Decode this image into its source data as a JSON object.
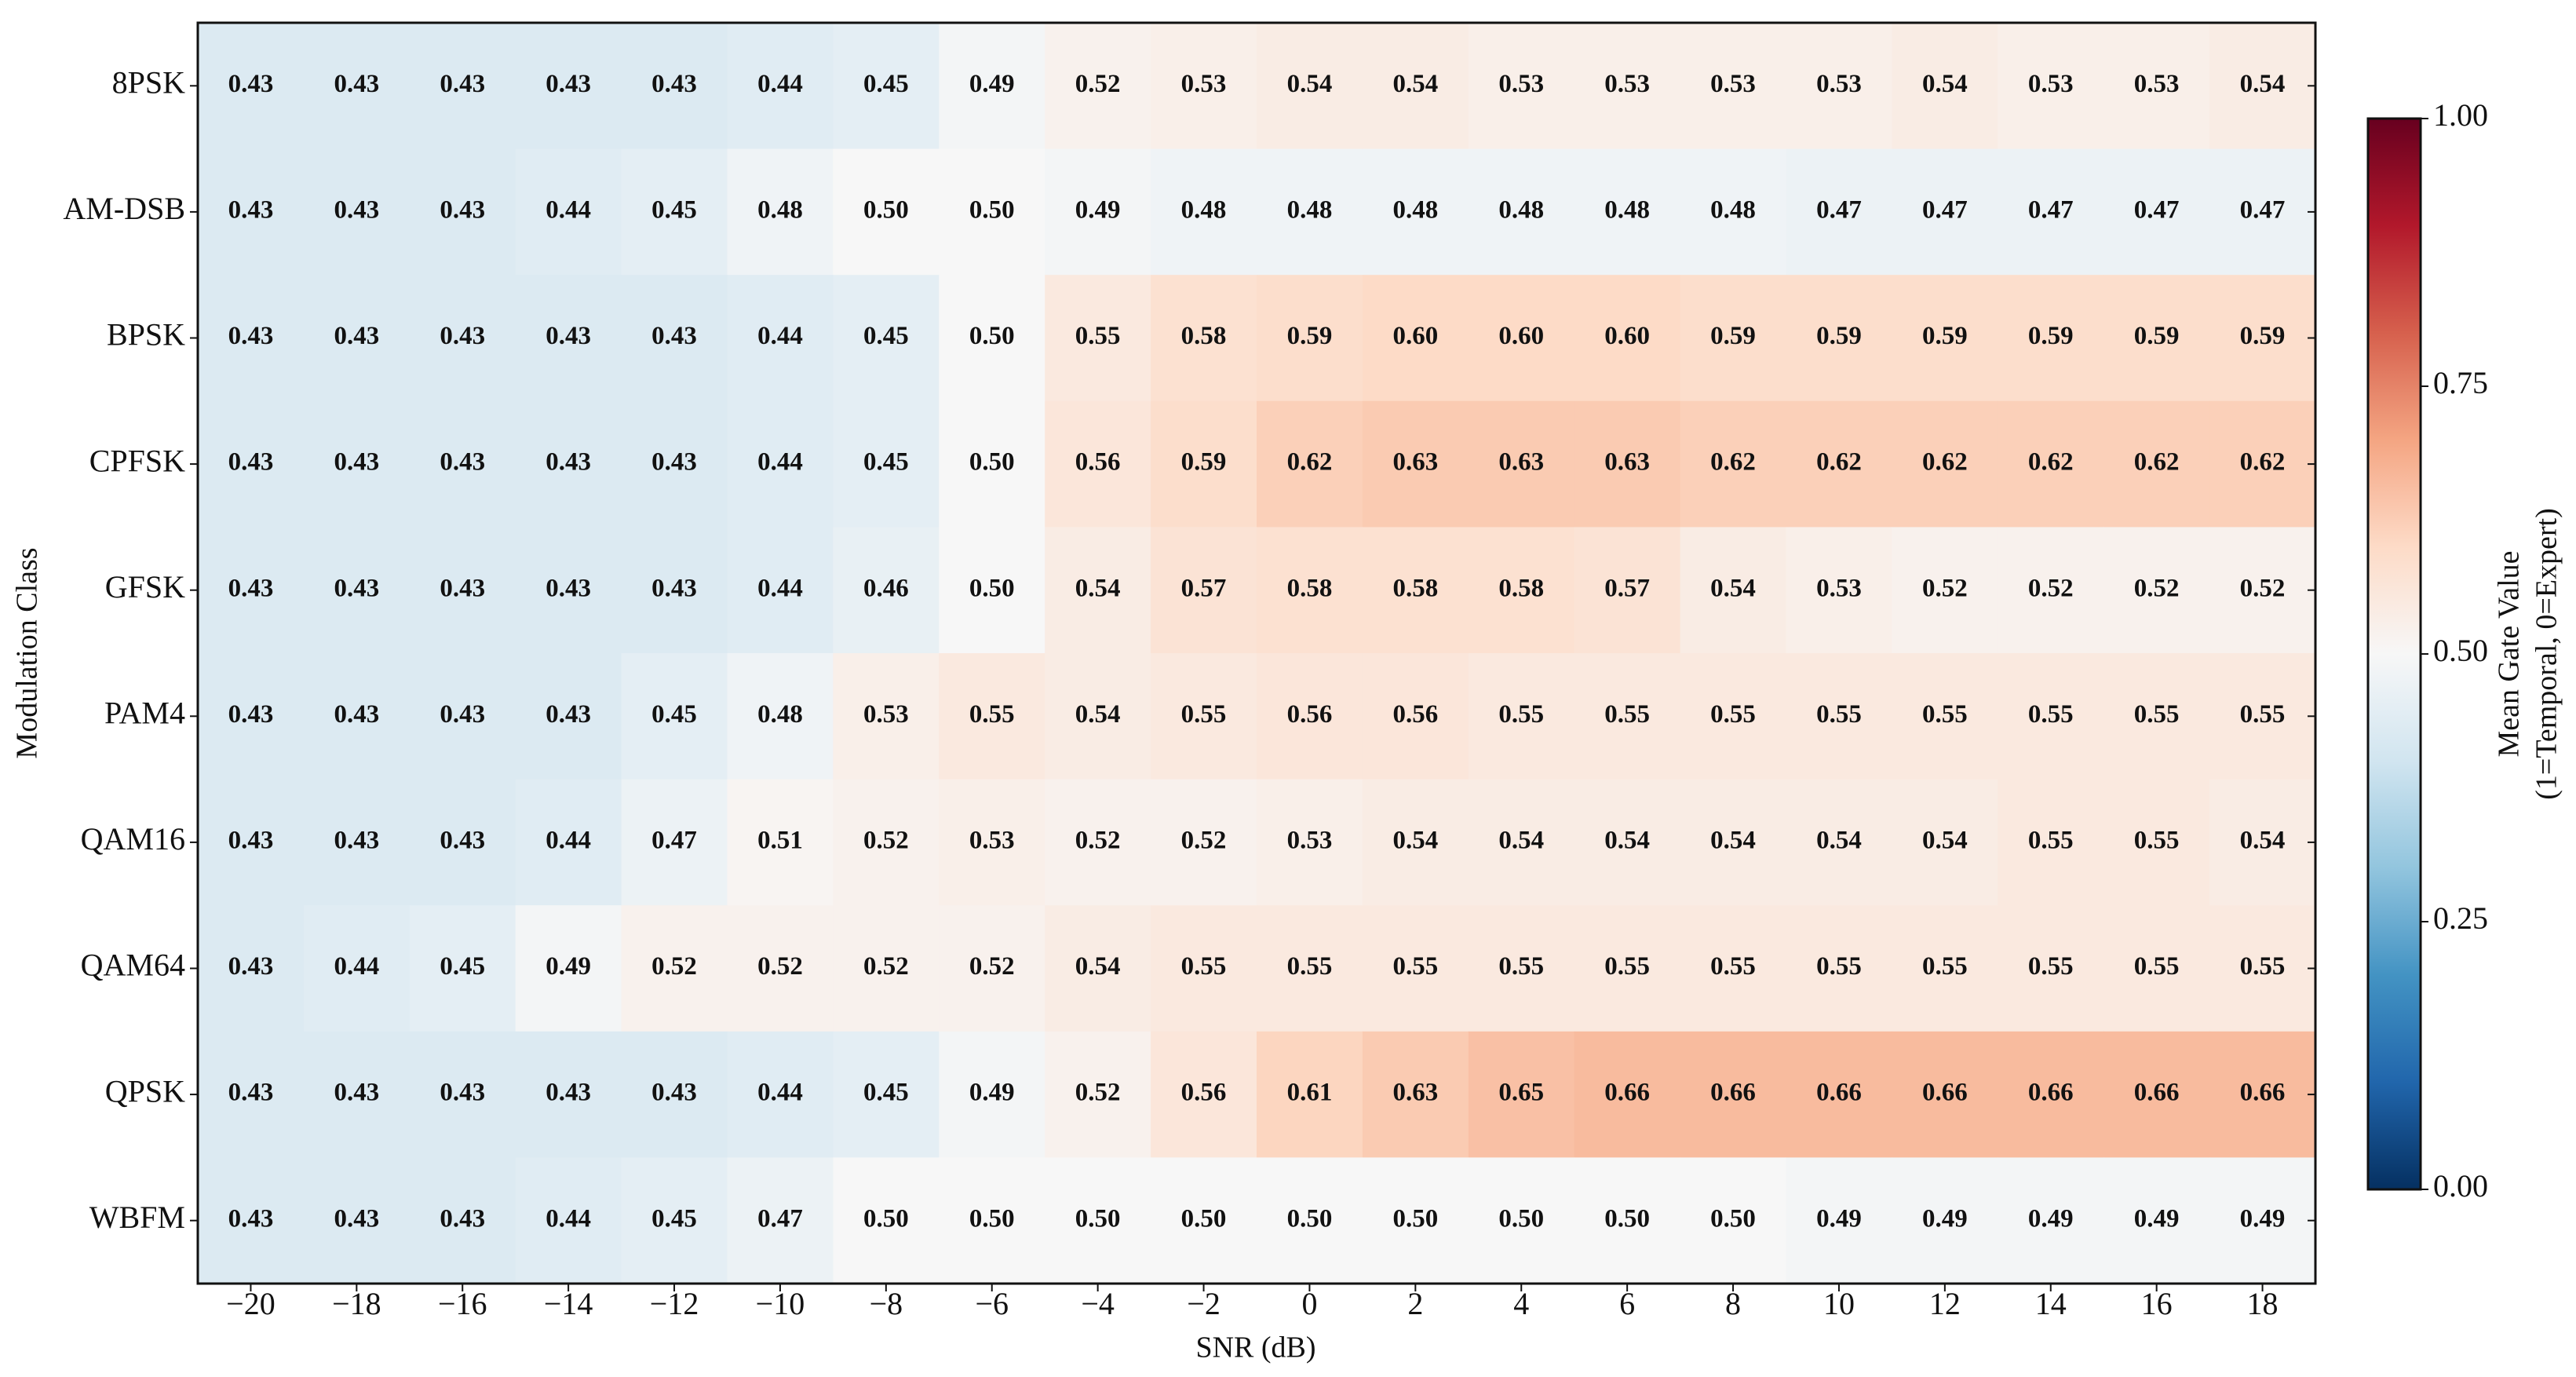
{
  "chart_data": {
    "type": "heatmap",
    "x_label": "SNR (dB)",
    "y_label": "Modulation Class",
    "x": [
      "−20",
      "−18",
      "−16",
      "−14",
      "−12",
      "−10",
      "−8",
      "−6",
      "−4",
      "−2",
      "0",
      "2",
      "4",
      "6",
      "8",
      "10",
      "12",
      "14",
      "16",
      "18"
    ],
    "y": [
      "8PSK",
      "AM-DSB",
      "BPSK",
      "CPFSK",
      "GFSK",
      "PAM4",
      "QAM16",
      "QAM64",
      "QPSK",
      "WBFM"
    ],
    "values": [
      [
        0.43,
        0.43,
        0.43,
        0.43,
        0.43,
        0.44,
        0.45,
        0.49,
        0.52,
        0.53,
        0.54,
        0.54,
        0.53,
        0.53,
        0.53,
        0.53,
        0.54,
        0.53,
        0.53,
        0.54
      ],
      [
        0.43,
        0.43,
        0.43,
        0.44,
        0.45,
        0.48,
        0.5,
        0.5,
        0.49,
        0.48,
        0.48,
        0.48,
        0.48,
        0.48,
        0.48,
        0.47,
        0.47,
        0.47,
        0.47,
        0.47
      ],
      [
        0.43,
        0.43,
        0.43,
        0.43,
        0.43,
        0.44,
        0.45,
        0.5,
        0.55,
        0.58,
        0.59,
        0.6,
        0.6,
        0.6,
        0.59,
        0.59,
        0.59,
        0.59,
        0.59,
        0.59
      ],
      [
        0.43,
        0.43,
        0.43,
        0.43,
        0.43,
        0.44,
        0.45,
        0.5,
        0.56,
        0.59,
        0.62,
        0.63,
        0.63,
        0.63,
        0.62,
        0.62,
        0.62,
        0.62,
        0.62,
        0.62
      ],
      [
        0.43,
        0.43,
        0.43,
        0.43,
        0.43,
        0.44,
        0.46,
        0.5,
        0.54,
        0.57,
        0.58,
        0.58,
        0.58,
        0.57,
        0.54,
        0.53,
        0.52,
        0.52,
        0.52,
        0.52
      ],
      [
        0.43,
        0.43,
        0.43,
        0.43,
        0.45,
        0.48,
        0.53,
        0.55,
        0.54,
        0.55,
        0.56,
        0.56,
        0.55,
        0.55,
        0.55,
        0.55,
        0.55,
        0.55,
        0.55,
        0.55
      ],
      [
        0.43,
        0.43,
        0.43,
        0.44,
        0.47,
        0.51,
        0.52,
        0.53,
        0.52,
        0.52,
        0.53,
        0.54,
        0.54,
        0.54,
        0.54,
        0.54,
        0.54,
        0.55,
        0.55,
        0.54
      ],
      [
        0.43,
        0.44,
        0.45,
        0.49,
        0.52,
        0.52,
        0.52,
        0.52,
        0.54,
        0.55,
        0.55,
        0.55,
        0.55,
        0.55,
        0.55,
        0.55,
        0.55,
        0.55,
        0.55,
        0.55
      ],
      [
        0.43,
        0.43,
        0.43,
        0.43,
        0.43,
        0.44,
        0.45,
        0.49,
        0.52,
        0.56,
        0.61,
        0.63,
        0.65,
        0.66,
        0.66,
        0.66,
        0.66,
        0.66,
        0.66,
        0.66
      ],
      [
        0.43,
        0.43,
        0.43,
        0.44,
        0.45,
        0.47,
        0.5,
        0.5,
        0.5,
        0.5,
        0.5,
        0.5,
        0.5,
        0.5,
        0.5,
        0.49,
        0.49,
        0.49,
        0.49,
        0.49
      ]
    ],
    "value_labels": [
      [
        "0.43",
        "0.43",
        "0.43",
        "0.43",
        "0.43",
        "0.44",
        "0.45",
        "0.49",
        "0.52",
        "0.53",
        "0.54",
        "0.54",
        "0.53",
        "0.53",
        "0.53",
        "0.53",
        "0.54",
        "0.53",
        "0.53",
        "0.54"
      ],
      [
        "0.43",
        "0.43",
        "0.43",
        "0.44",
        "0.45",
        "0.48",
        "0.50",
        "0.50",
        "0.49",
        "0.48",
        "0.48",
        "0.48",
        "0.48",
        "0.48",
        "0.48",
        "0.47",
        "0.47",
        "0.47",
        "0.47",
        "0.47"
      ],
      [
        "0.43",
        "0.43",
        "0.43",
        "0.43",
        "0.43",
        "0.44",
        "0.45",
        "0.50",
        "0.55",
        "0.58",
        "0.59",
        "0.60",
        "0.60",
        "0.60",
        "0.59",
        "0.59",
        "0.59",
        "0.59",
        "0.59",
        "0.59"
      ],
      [
        "0.43",
        "0.43",
        "0.43",
        "0.43",
        "0.43",
        "0.44",
        "0.45",
        "0.50",
        "0.56",
        "0.59",
        "0.62",
        "0.63",
        "0.63",
        "0.63",
        "0.62",
        "0.62",
        "0.62",
        "0.62",
        "0.62",
        "0.62"
      ],
      [
        "0.43",
        "0.43",
        "0.43",
        "0.43",
        "0.43",
        "0.44",
        "0.46",
        "0.50",
        "0.54",
        "0.57",
        "0.58",
        "0.58",
        "0.58",
        "0.57",
        "0.54",
        "0.53",
        "0.52",
        "0.52",
        "0.52",
        "0.52"
      ],
      [
        "0.43",
        "0.43",
        "0.43",
        "0.43",
        "0.45",
        "0.48",
        "0.53",
        "0.55",
        "0.54",
        "0.55",
        "0.56",
        "0.56",
        "0.55",
        "0.55",
        "0.55",
        "0.55",
        "0.55",
        "0.55",
        "0.55",
        "0.55"
      ],
      [
        "0.43",
        "0.43",
        "0.43",
        "0.44",
        "0.47",
        "0.51",
        "0.52",
        "0.53",
        "0.52",
        "0.52",
        "0.53",
        "0.54",
        "0.54",
        "0.54",
        "0.54",
        "0.54",
        "0.54",
        "0.55",
        "0.55",
        "0.54"
      ],
      [
        "0.43",
        "0.44",
        "0.45",
        "0.49",
        "0.52",
        "0.52",
        "0.52",
        "0.52",
        "0.54",
        "0.55",
        "0.55",
        "0.55",
        "0.55",
        "0.55",
        "0.55",
        "0.55",
        "0.55",
        "0.55",
        "0.55",
        "0.55"
      ],
      [
        "0.43",
        "0.43",
        "0.43",
        "0.43",
        "0.43",
        "0.44",
        "0.45",
        "0.49",
        "0.52",
        "0.56",
        "0.61",
        "0.63",
        "0.65",
        "0.66",
        "0.66",
        "0.66",
        "0.66",
        "0.66",
        "0.66",
        "0.66"
      ],
      [
        "0.43",
        "0.43",
        "0.43",
        "0.44",
        "0.45",
        "0.47",
        "0.50",
        "0.50",
        "0.50",
        "0.50",
        "0.50",
        "0.50",
        "0.50",
        "0.50",
        "0.50",
        "0.49",
        "0.49",
        "0.49",
        "0.49",
        "0.49"
      ]
    ],
    "colormap": "RdBu_r",
    "clim": [
      0,
      1
    ],
    "colorbar_ticks": [
      {
        "value": 0,
        "label": "0.00"
      },
      {
        "value": 0.25,
        "label": "0.25"
      },
      {
        "value": 0.5,
        "label": "0.50"
      },
      {
        "value": 0.75,
        "label": "0.75"
      },
      {
        "value": 1,
        "label": "1.00"
      }
    ],
    "colorbar_label": [
      "Mean Gate Value",
      "(1=Temporal, 0=Expert)"
    ]
  }
}
